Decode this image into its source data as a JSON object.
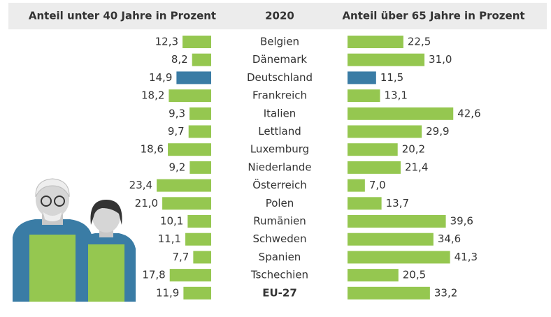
{
  "chart_data": {
    "type": "bar",
    "title": "2020",
    "categories": [
      "Belgien",
      "Dänemark",
      "Deutschland",
      "Frankreich",
      "Italien",
      "Lettland",
      "Luxemburg",
      "Niederlande",
      "Österreich",
      "Polen",
      "Rumänien",
      "Schweden",
      "Spanien",
      "Tschechien",
      "EU-27"
    ],
    "series": [
      {
        "name": "Anteil unter 40 Jahre in Prozent",
        "color": "#95c750",
        "colors": [
          "#95c750",
          "#95c750",
          "#3a7ca5",
          "#95c750",
          "#95c750",
          "#95c750",
          "#95c750",
          "#95c750",
          "#95c750",
          "#95c750",
          "#95c750",
          "#95c750",
          "#95c750",
          "#95c750",
          "#95c750"
        ],
        "values": [
          12.3,
          8.2,
          14.9,
          18.2,
          9.3,
          9.7,
          18.6,
          9.2,
          23.4,
          21.0,
          10.1,
          11.1,
          7.7,
          17.8,
          11.9
        ],
        "value_labels": [
          "12,3",
          "8,2",
          "14,9",
          "18,2",
          "9,3",
          "9,7",
          "18,6",
          "9,2",
          "23,4",
          "21,0",
          "10,1",
          "11,1",
          "7,7",
          "17,8",
          "11,9"
        ]
      },
      {
        "name": "Anteil über 65 Jahre in Prozent",
        "color": "#95c750",
        "colors": [
          "#95c750",
          "#95c750",
          "#3a7ca5",
          "#95c750",
          "#95c750",
          "#95c750",
          "#95c750",
          "#95c750",
          "#95c750",
          "#95c750",
          "#95c750",
          "#95c750",
          "#95c750",
          "#95c750",
          "#95c750"
        ],
        "values": [
          22.5,
          31.0,
          11.5,
          13.1,
          42.6,
          29.9,
          20.2,
          21.4,
          7.0,
          13.7,
          39.6,
          34.6,
          41.3,
          20.5,
          33.2
        ],
        "value_labels": [
          "22,5",
          "31,0",
          "11,5",
          "13,1",
          "42,6",
          "29,9",
          "20,2",
          "21,4",
          "7,0",
          "13,7",
          "39,6",
          "34,6",
          "41,3",
          "20,5",
          "33,2"
        ]
      }
    ]
  }
}
